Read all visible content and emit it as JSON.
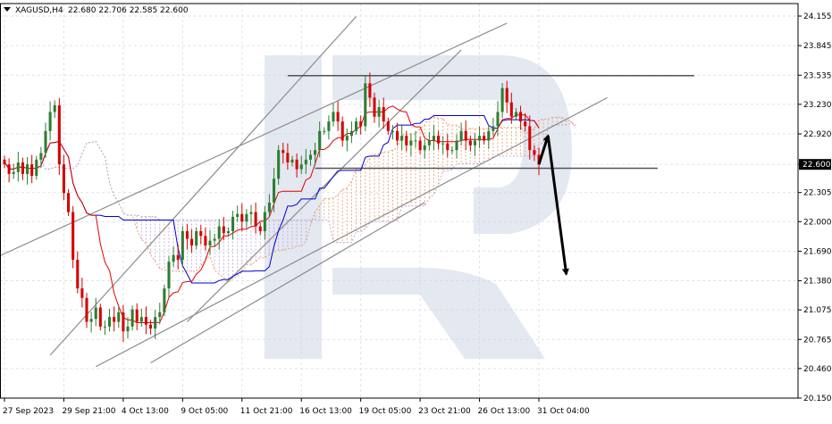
{
  "header": {
    "symbol": "XAGUSD,H4",
    "ohlc": "22.680 22.706 22.585 22.600"
  },
  "colors": {
    "bull_candle": "#2e7d32",
    "bear_candle": "#d50000",
    "tenkan": "#e00000",
    "kijun": "#0000cc",
    "cloud_a": "#e8a070",
    "cloud_b": "#c0a8d8",
    "channel": "#8c8c8c",
    "level": "#555555",
    "arrow": "#000000",
    "price_badge": "#000000",
    "watermark": "#ced6e6"
  },
  "chart_data": {
    "type": "candlestick",
    "title": "XAGUSD,H4",
    "ylim": [
      20.15,
      24.2
    ],
    "y_ticks": [
      "24.155",
      "23.845",
      "23.535",
      "23.230",
      "22.920",
      "22.600",
      "22.305",
      "22.000",
      "21.690",
      "21.380",
      "21.075",
      "20.765",
      "20.460",
      "20.150"
    ],
    "y_tick_values": [
      24.155,
      23.845,
      23.535,
      23.23,
      22.92,
      22.6,
      22.305,
      22.0,
      21.69,
      21.38,
      21.075,
      20.765,
      20.46,
      20.15
    ],
    "x_labels": [
      "27 Sep 2023",
      "29 Sep 21:00",
      "4 Oct 13:00",
      "9 Oct 05:00",
      "11 Oct 21:00",
      "16 Oct 13:00",
      "19 Oct 05:00",
      "23 Oct 21:00",
      "26 Oct 13:00",
      "31 Oct 04:00"
    ],
    "x_label_index": [
      0,
      13,
      26,
      39,
      52,
      65,
      78,
      91,
      104,
      117
    ],
    "current_price": "22.600",
    "closes": [
      22.6,
      22.5,
      22.52,
      22.62,
      22.5,
      22.6,
      22.48,
      22.65,
      22.72,
      22.95,
      23.15,
      23.22,
      22.6,
      22.3,
      22.1,
      21.6,
      21.3,
      21.2,
      20.95,
      20.98,
      21.1,
      20.9,
      20.9,
      21.0,
      20.95,
      21.05,
      20.85,
      20.9,
      21.08,
      20.95,
      21.0,
      20.92,
      20.88,
      21.0,
      21.05,
      21.3,
      21.58,
      21.65,
      21.6,
      21.9,
      21.82,
      21.75,
      21.9,
      21.85,
      21.75,
      21.8,
      21.82,
      21.95,
      21.88,
      21.9,
      22.05,
      22.08,
      22.0,
      22.08,
      22.1,
      21.95,
      21.9,
      22.1,
      22.2,
      22.45,
      22.75,
      22.72,
      22.62,
      22.65,
      22.55,
      22.6,
      22.65,
      22.7,
      22.75,
      22.95,
      22.95,
      23.05,
      23.15,
      23.05,
      22.85,
      22.9,
      22.95,
      23.05,
      23.0,
      23.45,
      23.3,
      23.1,
      23.2,
      23.05,
      22.95,
      22.95,
      22.85,
      22.9,
      22.8,
      22.85,
      22.85,
      22.75,
      22.8,
      22.85,
      22.9,
      22.82,
      22.82,
      22.75,
      22.75,
      22.85,
      22.95,
      22.85,
      22.8,
      22.85,
      22.9,
      22.85,
      22.95,
      23.0,
      23.15,
      23.4,
      23.25,
      23.1,
      23.15,
      23.05,
      23.0,
      22.75,
      22.7,
      22.6
    ],
    "levels": [
      23.53,
      22.56
    ],
    "forecast_path": [
      [
        117,
        22.6
      ],
      [
        119,
        22.9
      ],
      [
        123,
        21.45
      ]
    ]
  }
}
